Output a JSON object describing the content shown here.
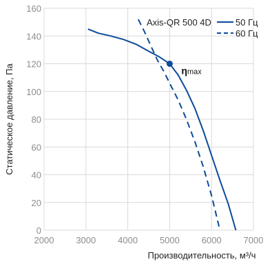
{
  "chart_data": {
    "type": "line",
    "xlabel": "Производительность, м³/ч",
    "ylabel": "Статическое давление, Па",
    "xlim": [
      2000,
      7000
    ],
    "ylim": [
      0,
      160
    ],
    "x_ticks": [
      2000,
      3000,
      4000,
      5000,
      6000,
      7000
    ],
    "y_ticks": [
      0,
      20,
      40,
      60,
      80,
      100,
      120,
      140,
      160
    ],
    "grid": true,
    "legend": {
      "title": "Axis-QR 500 4D",
      "position": "top-right"
    },
    "series": [
      {
        "name": "50 Гц",
        "style": "solid",
        "color": "#0b4a9a",
        "x": [
          3050,
          3300,
          3600,
          3900,
          4200,
          4500,
          4750,
          5000,
          5200,
          5400,
          5600,
          5800,
          6000,
          6200,
          6400,
          6580
        ],
        "y": [
          145,
          142,
          140,
          137.5,
          134,
          129,
          125,
          120,
          112,
          101,
          88,
          72,
          54,
          36,
          19,
          0
        ]
      },
      {
        "name": "60 Гц",
        "style": "dashed",
        "color": "#0b4a9a",
        "x": [
          4250,
          4400,
          4550,
          4700,
          4850,
          5000,
          5200,
          5400,
          5600,
          5800,
          6000,
          6200
        ],
        "y": [
          152,
          143,
          133,
          123,
          115,
          106,
          94,
          80,
          64,
          46,
          25,
          0
        ]
      }
    ],
    "annotations": [
      {
        "label": "η",
        "sub": "max",
        "x": 5000,
        "y": 120,
        "color": "#0b4a9a"
      }
    ]
  }
}
